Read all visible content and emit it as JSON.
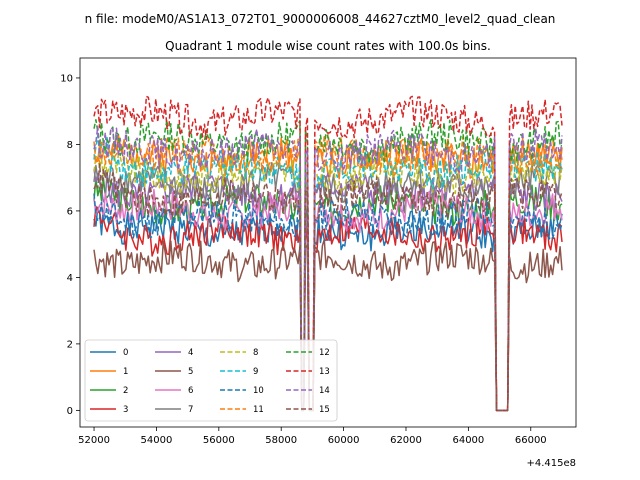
{
  "chart_data": {
    "type": "line",
    "suptitle": "n file: modeM0/AS1A13_072T01_9000006008_44627cztM0_level2_quad_clean",
    "title": "Quadrant 1 module wise count rates with 100.0s bins.",
    "xlabel": "",
    "ylabel": "",
    "x_offset_label": "+4.415e8",
    "x_range": [
      52000,
      67000
    ],
    "xlim": [
      51550,
      67450
    ],
    "ylim": [
      -0.5,
      10.6
    ],
    "x_ticks": [
      52000,
      54000,
      56000,
      58000,
      60000,
      62000,
      64000,
      66000
    ],
    "x_tick_labels": [
      "52000",
      "54000",
      "56000",
      "58000",
      "60000",
      "62000",
      "64000",
      "66000"
    ],
    "y_ticks": [
      0,
      2,
      4,
      6,
      8,
      10
    ],
    "y_tick_labels": [
      "0",
      "2",
      "4",
      "6",
      "8",
      "10"
    ],
    "gaps": [
      [
        58650,
        58750
      ],
      [
        58850,
        59050
      ],
      [
        64850,
        65300
      ]
    ],
    "grid": false,
    "legend_location": "lower left",
    "legend_columns": 4,
    "series": [
      {
        "name": "0",
        "color": "#1f77b4",
        "dashed": false,
        "mean": 5.4,
        "amp": 0.3
      },
      {
        "name": "1",
        "color": "#ff7f0e",
        "dashed": false,
        "mean": 7.6,
        "amp": 0.3
      },
      {
        "name": "2",
        "color": "#2ca02c",
        "dashed": false,
        "mean": 6.2,
        "amp": 0.3
      },
      {
        "name": "3",
        "color": "#d62728",
        "dashed": false,
        "mean": 5.3,
        "amp": 0.3
      },
      {
        "name": "4",
        "color": "#9467bd",
        "dashed": false,
        "mean": 6.6,
        "amp": 0.3
      },
      {
        "name": "5",
        "color": "#8c564b",
        "dashed": false,
        "mean": 4.5,
        "amp": 0.3
      },
      {
        "name": "6",
        "color": "#e377c2",
        "dashed": false,
        "mean": 6.0,
        "amp": 0.3
      },
      {
        "name": "7",
        "color": "#7f7f7f",
        "dashed": false,
        "mean": 6.8,
        "amp": 0.3
      },
      {
        "name": "8",
        "color": "#bcbd22",
        "dashed": true,
        "mean": 7.1,
        "amp": 0.3
      },
      {
        "name": "9",
        "color": "#17becf",
        "dashed": true,
        "mean": 7.3,
        "amp": 0.3
      },
      {
        "name": "10",
        "color": "#1f77b4",
        "dashed": true,
        "mean": 5.8,
        "amp": 0.3
      },
      {
        "name": "11",
        "color": "#ff7f0e",
        "dashed": true,
        "mean": 7.7,
        "amp": 0.3
      },
      {
        "name": "12",
        "color": "#2ca02c",
        "dashed": true,
        "mean": 8.1,
        "amp": 0.3
      },
      {
        "name": "13",
        "color": "#d62728",
        "dashed": true,
        "mean": 8.8,
        "amp": 0.3
      },
      {
        "name": "14",
        "color": "#9467bd",
        "dashed": true,
        "mean": 7.8,
        "amp": 0.3
      },
      {
        "name": "15",
        "color": "#8c564b",
        "dashed": true,
        "mean": 6.4,
        "amp": 0.3
      }
    ]
  }
}
